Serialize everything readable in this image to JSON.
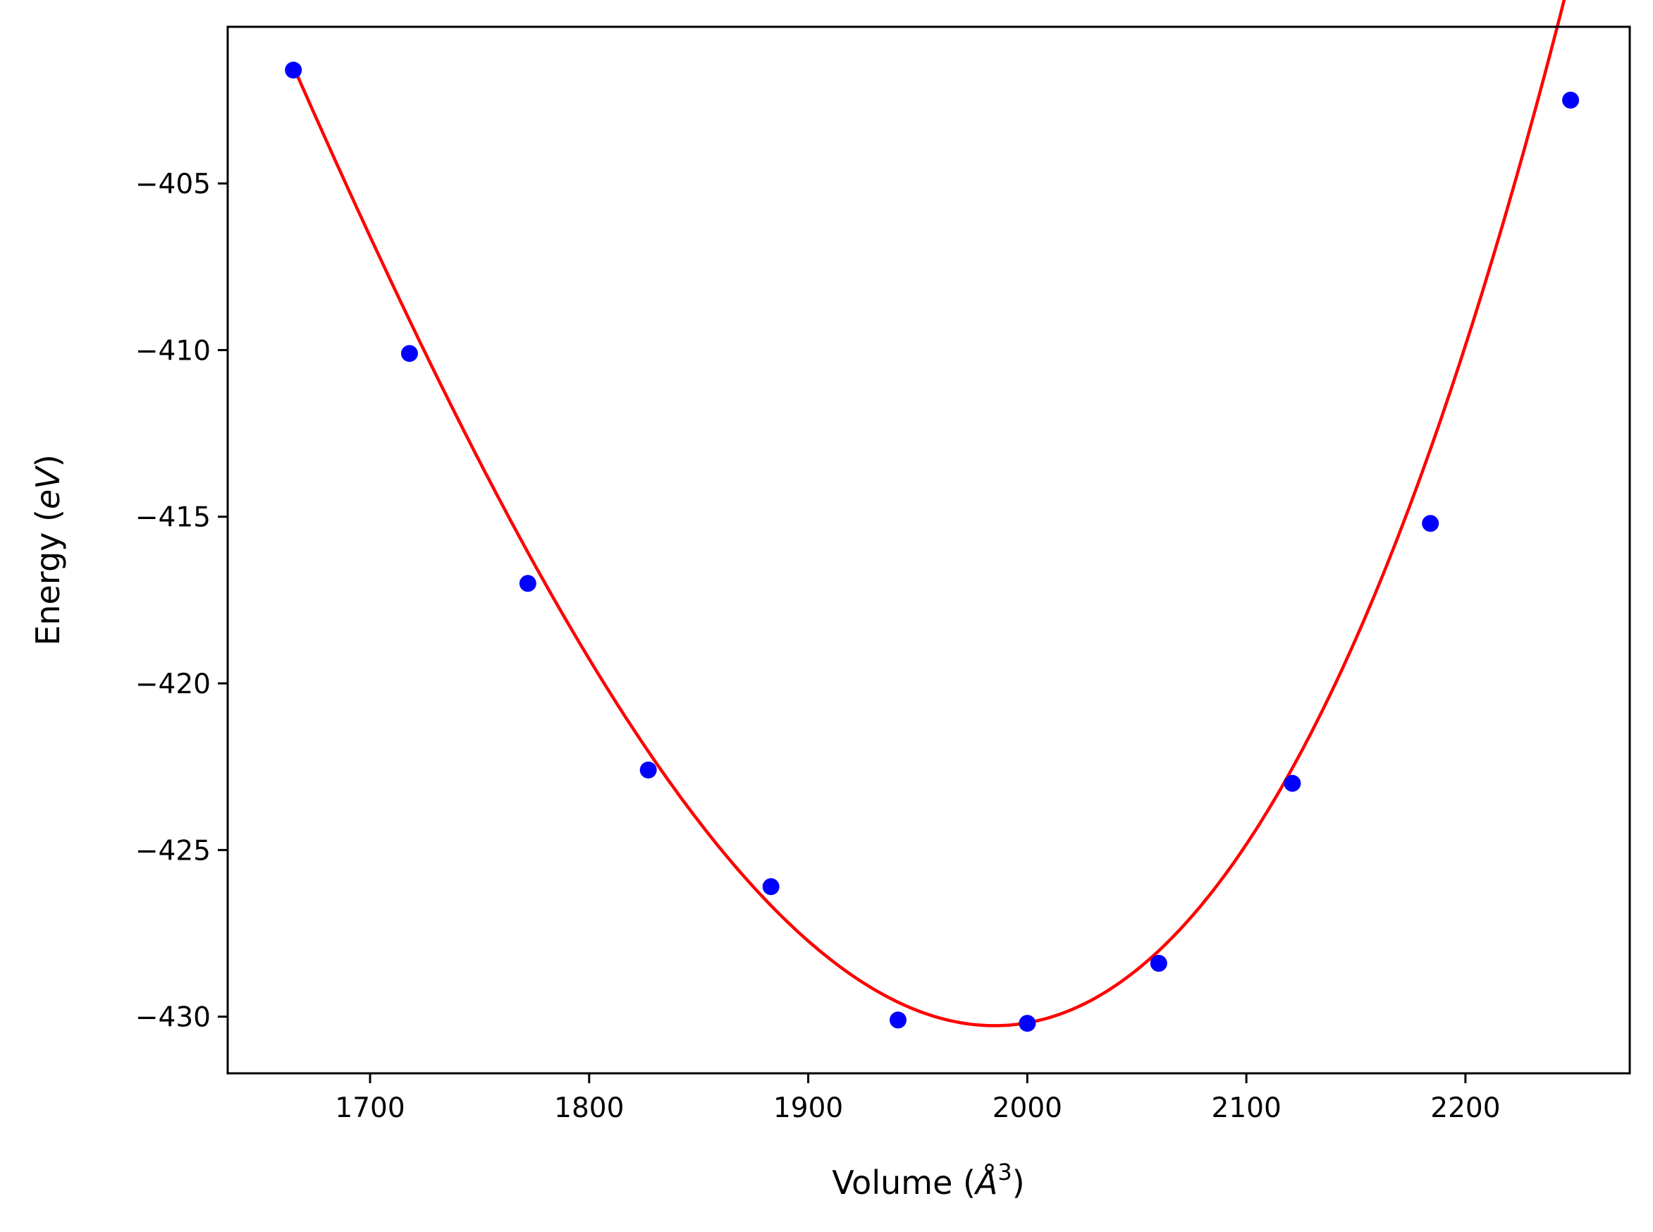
{
  "chart_data": {
    "type": "scatter",
    "title": "",
    "xlabel": {
      "prefix": "Volume (",
      "symbol": "Å",
      "superscript": "3",
      "suffix": ")"
    },
    "ylabel": {
      "prefix": "Energy (",
      "symbol": "eV",
      "suffix": ")"
    },
    "xlim": [
      1635,
      2275
    ],
    "ylim": [
      -431.7,
      -400.3
    ],
    "xticks": [
      1700,
      1800,
      1900,
      2000,
      2100,
      2200
    ],
    "yticks": [
      -405,
      -410,
      -415,
      -420,
      -425,
      -430
    ],
    "xtick_labels": [
      "1700",
      "1800",
      "1900",
      "2000",
      "2100",
      "2200"
    ],
    "ytick_labels": [
      "−405",
      "−410",
      "−415",
      "−420",
      "−425",
      "−430"
    ],
    "grid": false,
    "series": [
      {
        "kind": "points",
        "color": "#0000ff",
        "x": [
          1665,
          1718,
          1772,
          1827,
          1883,
          1941,
          2000,
          2060,
          2121,
          2184,
          2248
        ],
        "y": [
          -401.6,
          -410.1,
          -417.0,
          -422.6,
          -426.1,
          -430.1,
          -430.2,
          -428.4,
          -423.0,
          -415.2,
          -402.5
        ]
      },
      {
        "kind": "fit-curve",
        "color": "#ff0000",
        "fit_form": "polynomial",
        "fit_coefficients": [
          3e-07,
          0.000377,
          -430.27
        ],
        "fit_center_x": 1985,
        "fit_x_range": [
          1665,
          2248
        ]
      }
    ]
  }
}
